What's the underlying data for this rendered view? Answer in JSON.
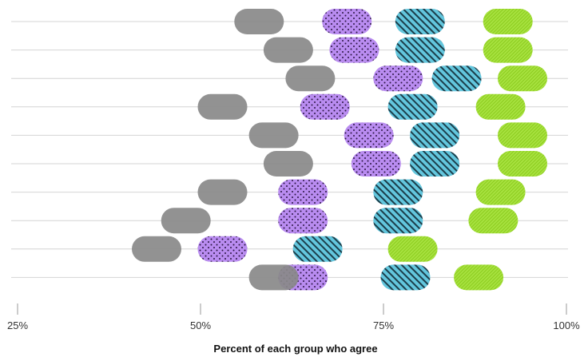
{
  "chart_data": {
    "type": "scatter",
    "xlabel": "Percent of each group who agree",
    "ylabel": "",
    "xlim": [
      25,
      100
    ],
    "x_ticks": [
      {
        "value": 25,
        "label": "25%"
      },
      {
        "value": 50,
        "label": "50%"
      },
      {
        "value": 75,
        "label": "75%"
      },
      {
        "value": 100,
        "label": "100%"
      }
    ],
    "grid": "horizontal",
    "legend": "none",
    "series": [
      {
        "color": "#898989",
        "pattern": "solid",
        "values": [
          58,
          62,
          65,
          53,
          60,
          62,
          53,
          48,
          44,
          60
        ]
      },
      {
        "color": "#b98cf0",
        "pattern": "dots",
        "values": [
          70,
          71,
          77,
          67,
          73,
          74,
          64,
          64,
          53,
          64
        ]
      },
      {
        "color": "#63c6dd",
        "pattern": "diagonal-hatch",
        "values": [
          80,
          80,
          85,
          79,
          82,
          82,
          77,
          77,
          66,
          78
        ]
      },
      {
        "color": "#a7e23f",
        "pattern": "fine-hatch",
        "values": [
          92,
          92,
          94,
          91,
          94,
          94,
          91,
          90,
          79,
          88
        ]
      }
    ]
  }
}
